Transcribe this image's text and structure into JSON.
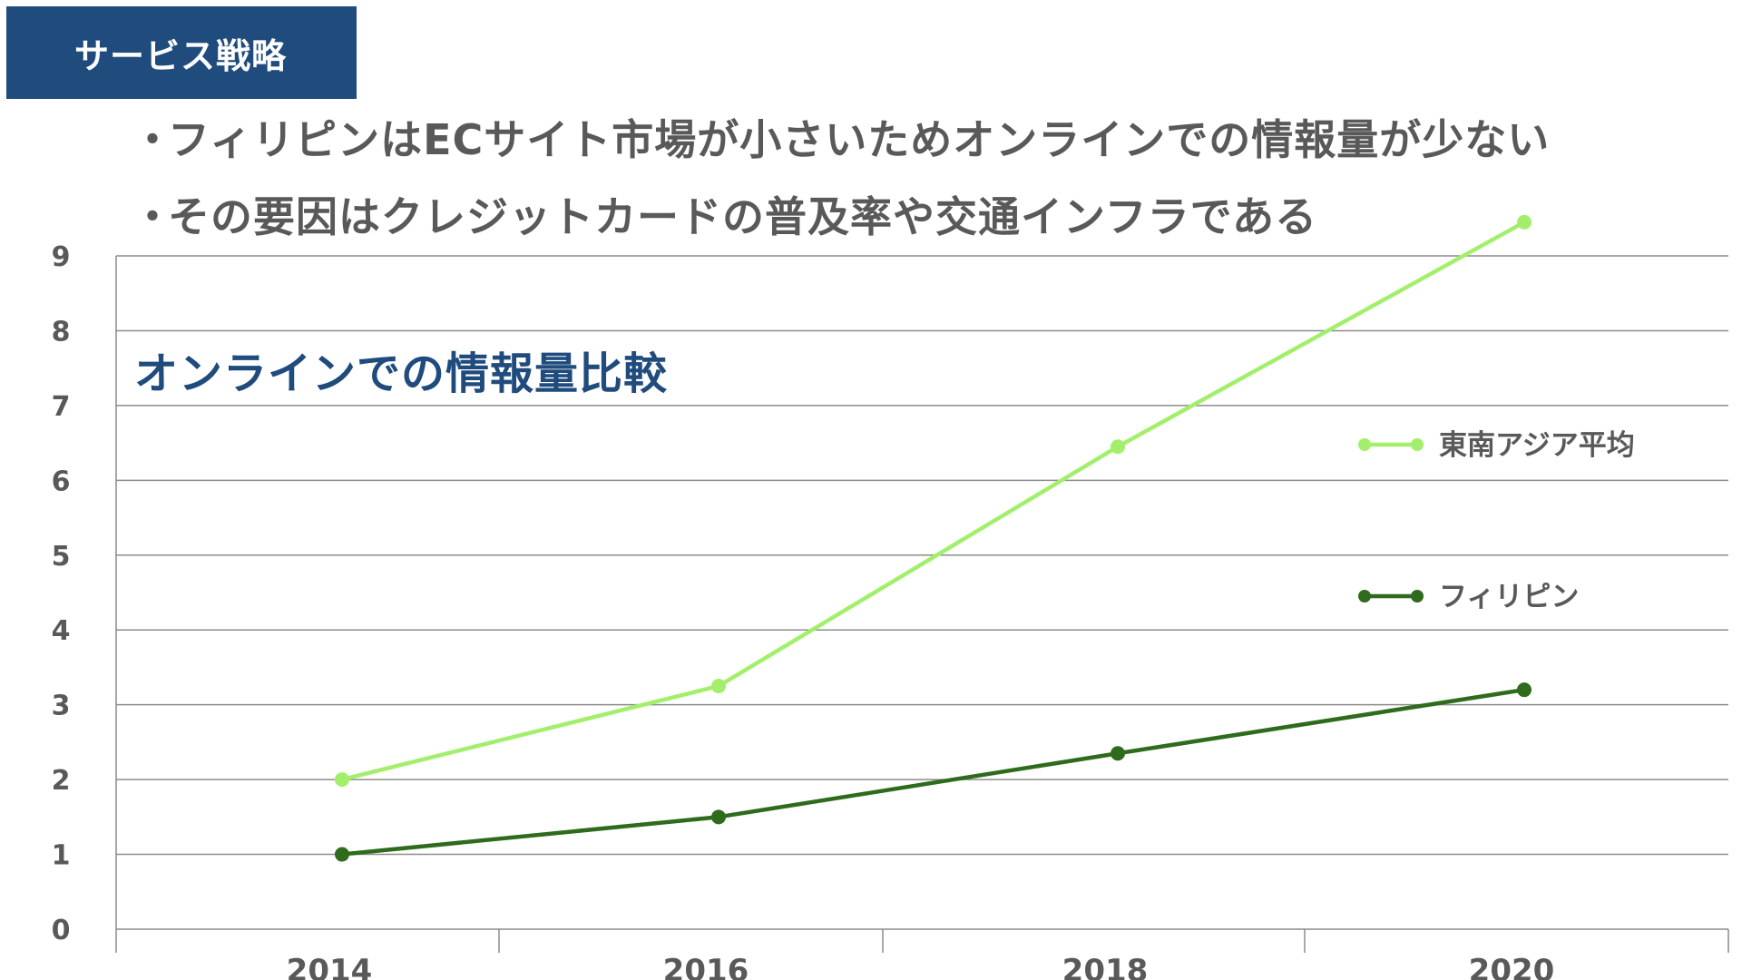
{
  "header": {
    "title": "サービス戦略"
  },
  "bullets": [
    {
      "marker": "・",
      "text": "フィリピンはECサイト市場が小さいためオンラインでの情報量が少ない"
    },
    {
      "marker": "・",
      "text": "その要因はクレジットカードの普及率や交通インフラである"
    }
  ],
  "chart_data": {
    "type": "line",
    "title": "オンラインでの情報量比較",
    "x": [
      "2014",
      "2016",
      "2018",
      "2020"
    ],
    "ylim": [
      0,
      9
    ],
    "yticks": [
      "0",
      "1",
      "2",
      "3",
      "4",
      "5",
      "6",
      "7",
      "8",
      "9"
    ],
    "grid": true,
    "legend_position": "right",
    "series": [
      {
        "name": "東南アジア平均",
        "color": "#a3ef6b",
        "values": [
          2.0,
          3.25,
          6.45,
          9.45
        ]
      },
      {
        "name": "フィリピン",
        "color": "#2e6b1c",
        "values": [
          1.0,
          1.5,
          2.35,
          3.2
        ]
      }
    ]
  }
}
